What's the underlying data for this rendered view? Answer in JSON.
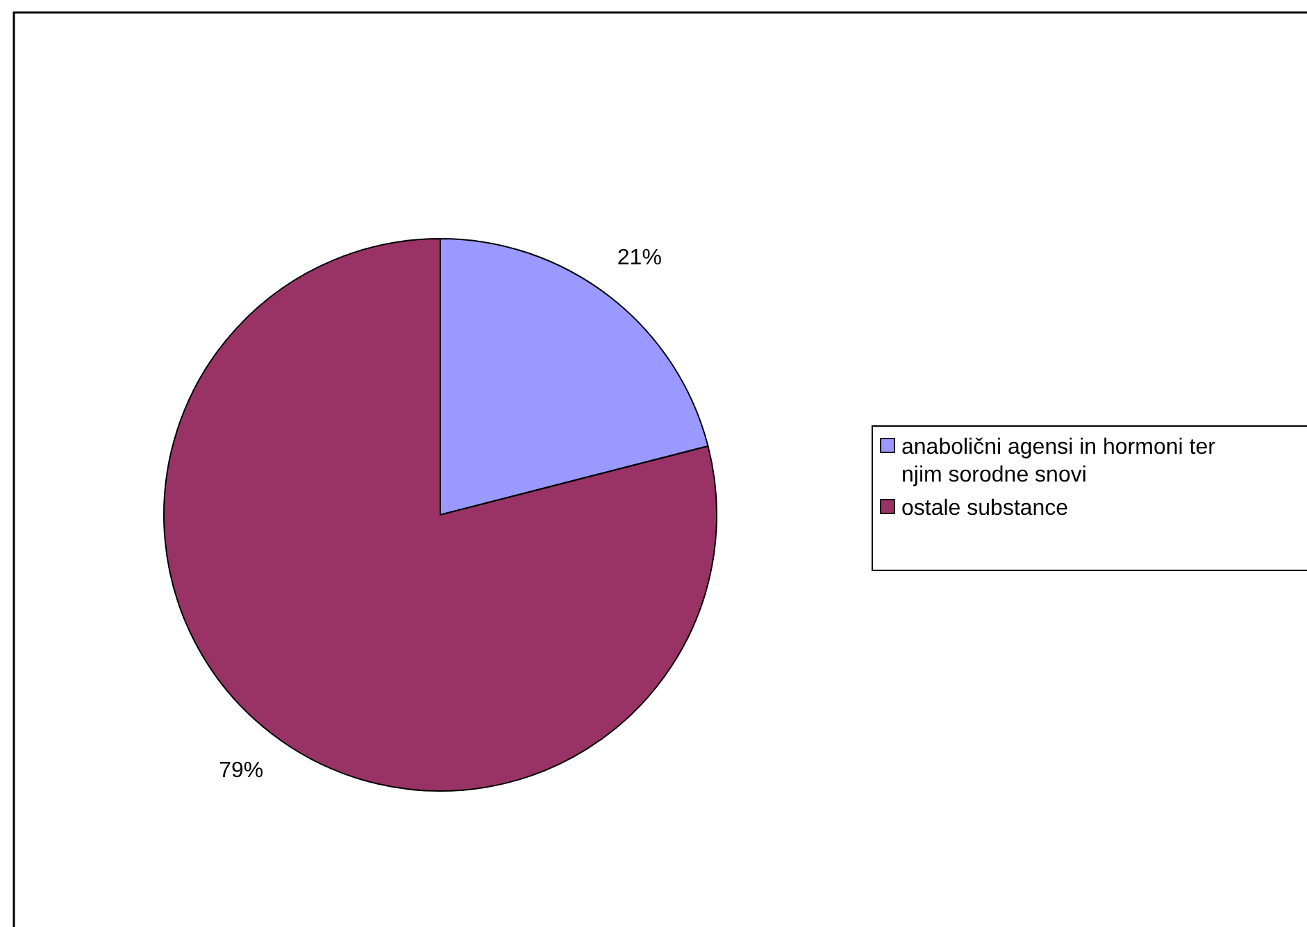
{
  "chart_data": {
    "type": "pie",
    "categories": [
      "anabolični agensi in hormoni ter njim sorodne snovi",
      "ostale substance"
    ],
    "values": [
      21,
      79
    ],
    "colors": [
      "#9999ff",
      "#993366"
    ],
    "value_labels": [
      "21%",
      "79%"
    ],
    "legend": "right"
  }
}
